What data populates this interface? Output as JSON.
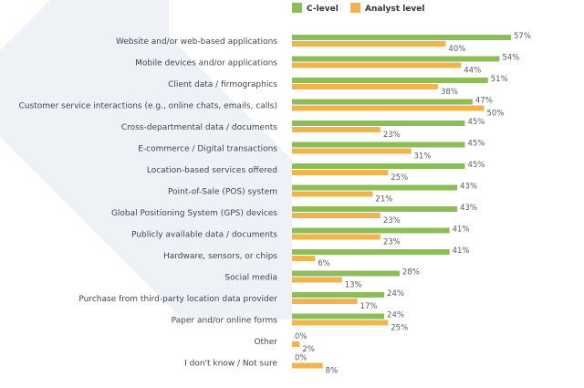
{
  "chart_data": {
    "type": "bar",
    "orientation": "horizontal",
    "categories": [
      "Website and/or web-based applications",
      "Mobile devices and/or applications",
      "Client data / firmographics",
      "Customer service interactions (e.g., online chats, emails, calls)",
      "Cross-departmental data / documents",
      "E-commerce / Digital transactions",
      "Location-based services offered",
      "Point-of-Sale (POS) system",
      "Global Positioning System (GPS) devices",
      "Publicly available data / documents",
      "Hardware, sensors, or chips",
      "Social media",
      "Purchase from third-party location data provider",
      "Paper and/or online forms",
      "Other",
      "I don't know / Not sure"
    ],
    "series": [
      {
        "name": "C-level",
        "color": "#8cbd57",
        "values": [
          57,
          54,
          51,
          47,
          45,
          45,
          45,
          43,
          43,
          41,
          41,
          28,
          24,
          24,
          0,
          0
        ]
      },
      {
        "name": "Analyst level",
        "color": "#f0b44c",
        "values": [
          40,
          44,
          38,
          50,
          23,
          31,
          25,
          21,
          23,
          23,
          6,
          13,
          17,
          25,
          2,
          8
        ]
      }
    ],
    "value_suffix": "%",
    "legend_position": "top",
    "grid": false,
    "xlim": [
      0,
      60
    ]
  },
  "background_color": "#eef2f6"
}
